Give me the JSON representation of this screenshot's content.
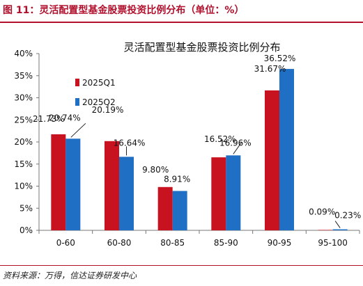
{
  "caption": "图 11：灵活配置型基金股票投资比例分布（单位：%）",
  "source": "资料来源：万得，信达证券研发中心",
  "colors": {
    "accent": "#b0102c",
    "series1": "#c8121f",
    "series2": "#1f6fc5"
  },
  "chart_data": {
    "type": "bar",
    "title": "灵活配置型基金股票投资比例分布",
    "xlabel": "",
    "ylabel": "",
    "categories": [
      "0-60",
      "60-80",
      "80-85",
      "85-90",
      "90-95",
      "95-100"
    ],
    "series": [
      {
        "name": "2025Q1",
        "values": [
          21.73,
          20.19,
          9.8,
          16.52,
          31.67,
          0.09
        ],
        "labels": [
          "21.73%",
          "20.19%",
          "9.80%",
          "16.52%",
          "31.67%",
          "0.09%"
        ]
      },
      {
        "name": "2025Q2",
        "values": [
          20.74,
          16.64,
          8.91,
          16.96,
          36.52,
          0.23
        ],
        "labels": [
          "20.74%",
          "16.64%",
          "8.91%",
          "16.96%",
          "36.52%",
          "0.23%"
        ]
      }
    ],
    "ylim": [
      0,
      40
    ],
    "yticks": [
      "0%",
      "5%",
      "10%",
      "15%",
      "20%",
      "25%",
      "30%",
      "35%",
      "40%"
    ],
    "grid": false,
    "legend": "top-left"
  }
}
